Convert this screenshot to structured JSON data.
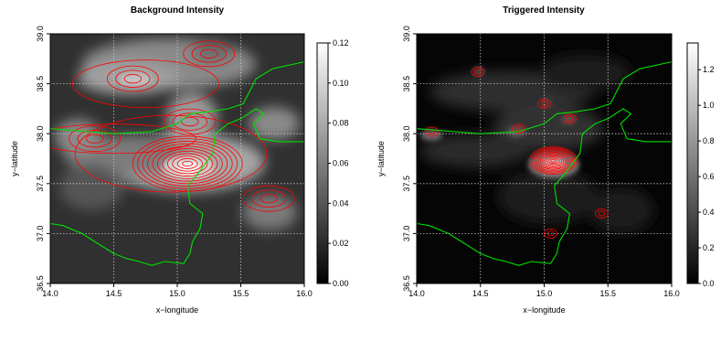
{
  "chart_data": [
    {
      "type": "heatmap",
      "title": "Background Intensity",
      "xlabel": "x−longitude",
      "ylabel": "y−latitude",
      "xlim": [
        14.0,
        16.0
      ],
      "ylim": [
        36.5,
        39.0
      ],
      "x_ticks": [
        "14.0",
        "14.5",
        "15.0",
        "15.5",
        "16.0"
      ],
      "y_ticks": [
        "36.5",
        "37.0",
        "37.5",
        "38.0",
        "38.5",
        "39.0"
      ],
      "colorbar_ticks": [
        "0.00",
        "0.02",
        "0.04",
        "0.06",
        "0.08",
        "0.10",
        "0.12"
      ],
      "colorbar_range": [
        0.0,
        0.12
      ],
      "colormap": "grayscale (black low, white high)",
      "contour_color": "#ff0000",
      "coastline_color": "#00e000",
      "grid": true,
      "peaks": [
        {
          "x": 15.08,
          "y": 37.7,
          "value": 0.12
        },
        {
          "x": 14.65,
          "y": 38.55,
          "value": 0.06
        },
        {
          "x": 15.1,
          "y": 38.12,
          "value": 0.07
        },
        {
          "x": 15.72,
          "y": 37.35,
          "value": 0.05
        },
        {
          "x": 14.35,
          "y": 37.95,
          "value": 0.05
        },
        {
          "x": 15.25,
          "y": 38.8,
          "value": 0.045
        }
      ]
    },
    {
      "type": "heatmap",
      "title": "Triggered Intensity",
      "xlabel": "x−longitude",
      "ylabel": "y−latitude",
      "xlim": [
        14.0,
        16.0
      ],
      "ylim": [
        36.5,
        39.0
      ],
      "x_ticks": [
        "14.0",
        "14.5",
        "15.0",
        "15.5",
        "16.0"
      ],
      "y_ticks": [
        "36.5",
        "37.0",
        "37.5",
        "38.0",
        "38.5",
        "39.0"
      ],
      "colorbar_ticks": [
        "0.0",
        "0.2",
        "0.4",
        "0.6",
        "0.8",
        "1.0",
        "1.2"
      ],
      "colorbar_range": [
        0.0,
        1.35
      ],
      "colormap": "grayscale (black low, white high)",
      "contour_color": "#ff0000",
      "coastline_color": "#00e000",
      "grid": true,
      "peaks": [
        {
          "x": 15.07,
          "y": 37.73,
          "value": 1.3
        },
        {
          "x": 14.12,
          "y": 38.02,
          "value": 0.6
        },
        {
          "x": 14.8,
          "y": 38.05,
          "value": 0.5
        },
        {
          "x": 15.2,
          "y": 38.15,
          "value": 0.45
        },
        {
          "x": 14.48,
          "y": 38.62,
          "value": 0.35
        },
        {
          "x": 15.0,
          "y": 38.3,
          "value": 0.3
        },
        {
          "x": 15.45,
          "y": 37.2,
          "value": 0.3
        },
        {
          "x": 15.05,
          "y": 37.0,
          "value": 0.25
        }
      ]
    }
  ]
}
